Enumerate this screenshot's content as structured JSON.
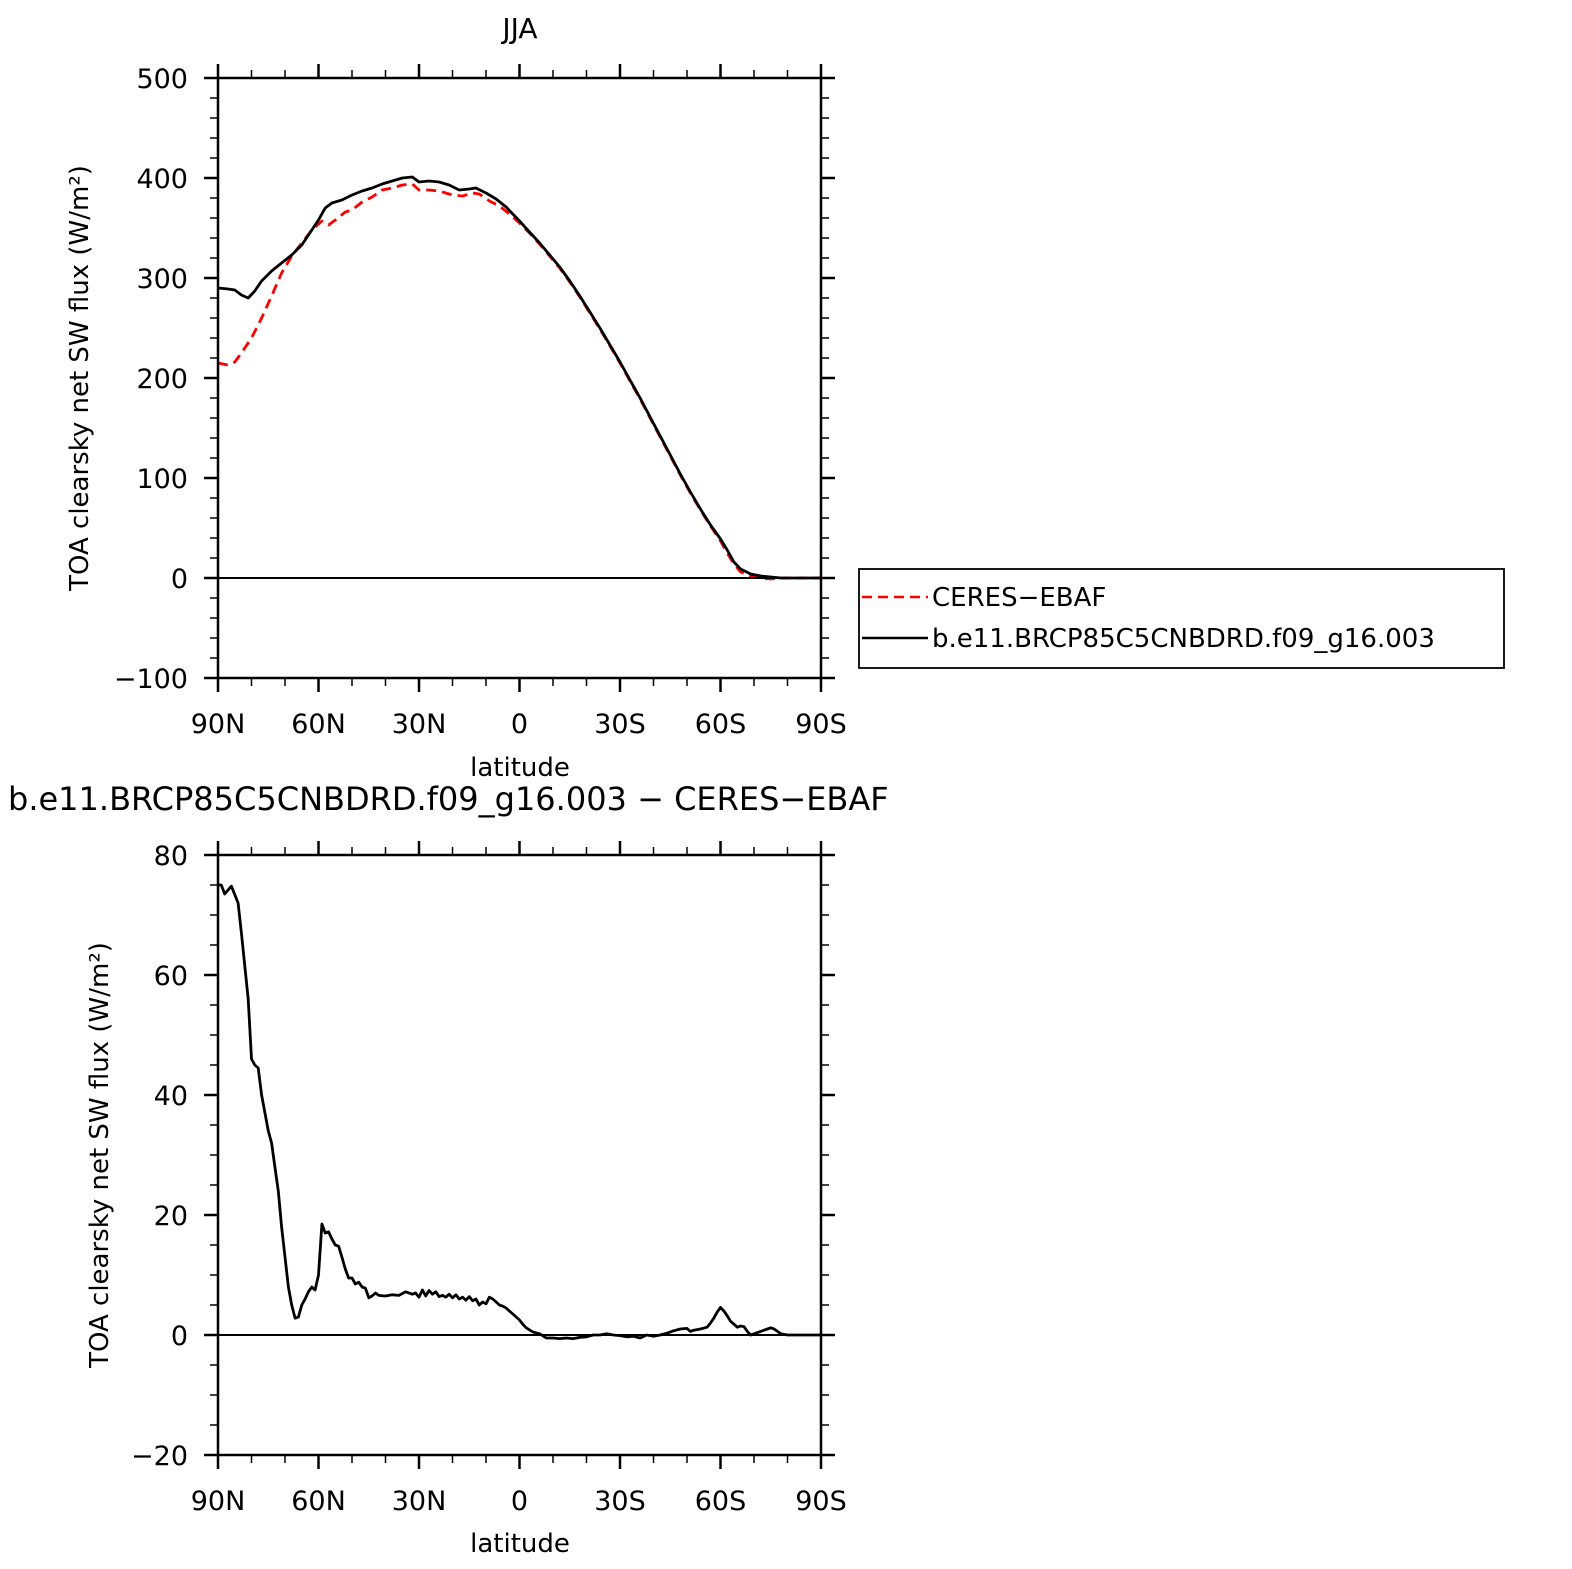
{
  "chart_data": [
    {
      "type": "line",
      "title": "JJA",
      "xlabel": "latitude",
      "ylabel": "TOA clearsky net SW flux (W/m²)",
      "xlim": [
        90,
        -90
      ],
      "ylim": [
        -100,
        500
      ],
      "yticks": [
        -100,
        0,
        100,
        200,
        300,
        400,
        500
      ],
      "xticks": [
        {
          "value": 90,
          "label": "90N"
        },
        {
          "value": 60,
          "label": "60N"
        },
        {
          "value": 30,
          "label": "30N"
        },
        {
          "value": 0,
          "label": "0"
        },
        {
          "value": -30,
          "label": "30S"
        },
        {
          "value": -60,
          "label": "60S"
        },
        {
          "value": -90,
          "label": "90S"
        }
      ],
      "legend_position": "right",
      "series": [
        {
          "name": "CERES−EBAF",
          "color": "#ff0000",
          "style": "dashed",
          "points": [
            [
              90,
              215
            ],
            [
              87,
              213
            ],
            [
              85,
              216
            ],
            [
              83,
              225
            ],
            [
              80,
              240
            ],
            [
              77,
              260
            ],
            [
              74,
              282
            ],
            [
              71,
              305
            ],
            [
              68,
              322
            ],
            [
              65,
              335
            ],
            [
              62,
              348
            ],
            [
              59,
              357
            ],
            [
              57,
              353
            ],
            [
              55,
              358
            ],
            [
              52,
              366
            ],
            [
              50,
              368
            ],
            [
              47,
              376
            ],
            [
              44,
              381
            ],
            [
              41,
              388
            ],
            [
              38,
              390
            ],
            [
              35,
              393
            ],
            [
              32,
              394
            ],
            [
              30,
              388
            ],
            [
              27,
              388
            ],
            [
              24,
              387
            ],
            [
              20,
              383
            ],
            [
              17,
              382
            ],
            [
              14,
              385
            ],
            [
              12,
              384
            ],
            [
              9,
              377
            ],
            [
              6,
              372
            ],
            [
              3,
              364
            ],
            [
              0,
              355
            ],
            [
              -3,
              345
            ],
            [
              -6,
              334
            ],
            [
              -9,
              322
            ],
            [
              -12,
              310
            ],
            [
              -15,
              296
            ],
            [
              -18,
              281
            ],
            [
              -21,
              265
            ],
            [
              -24,
              249
            ],
            [
              -27,
              232
            ],
            [
              -30,
              215
            ],
            [
              -33,
              197
            ],
            [
              -36,
              179
            ],
            [
              -39,
              160
            ],
            [
              -42,
              141
            ],
            [
              -45,
              122
            ],
            [
              -48,
              103
            ],
            [
              -51,
              85
            ],
            [
              -54,
              68
            ],
            [
              -57,
              52
            ],
            [
              -60,
              37
            ],
            [
              -62,
              25
            ],
            [
              -64,
              14
            ],
            [
              -66,
              6
            ],
            [
              -69,
              2
            ],
            [
              -72,
              0
            ],
            [
              -75,
              -1
            ],
            [
              -78,
              0
            ],
            [
              -81,
              0
            ],
            [
              -84,
              0
            ],
            [
              -87,
              0
            ],
            [
              -90,
              0
            ]
          ]
        },
        {
          "name": "b.e11.BRCP85C5CNBDRD.f09_g16.003",
          "color": "#000000",
          "style": "solid",
          "points": [
            [
              90,
              290
            ],
            [
              87,
              289
            ],
            [
              85,
              288
            ],
            [
              83,
              283
            ],
            [
              81,
              280
            ],
            [
              79,
              287
            ],
            [
              77,
              297
            ],
            [
              74,
              307
            ],
            [
              71,
              315
            ],
            [
              68,
              323
            ],
            [
              65,
              333
            ],
            [
              62,
              348
            ],
            [
              60,
              358
            ],
            [
              58,
              370
            ],
            [
              56,
              375
            ],
            [
              53,
              378
            ],
            [
              50,
              383
            ],
            [
              47,
              387
            ],
            [
              44,
              390
            ],
            [
              41,
              394
            ],
            [
              38,
              397
            ],
            [
              35,
              400
            ],
            [
              32,
              401
            ],
            [
              30,
              396
            ],
            [
              27,
              397
            ],
            [
              24,
              396
            ],
            [
              21,
              393
            ],
            [
              18,
              388
            ],
            [
              15,
              389
            ],
            [
              13,
              390
            ],
            [
              10,
              385
            ],
            [
              7,
              379
            ],
            [
              4,
              371
            ],
            [
              2,
              364
            ],
            [
              0,
              357
            ],
            [
              -3,
              346
            ],
            [
              -6,
              335
            ],
            [
              -9,
              323
            ],
            [
              -12,
              311
            ],
            [
              -15,
              297
            ],
            [
              -18,
              282
            ],
            [
              -21,
              266
            ],
            [
              -24,
              250
            ],
            [
              -27,
              233
            ],
            [
              -30,
              216
            ],
            [
              -33,
              198
            ],
            [
              -36,
              180
            ],
            [
              -39,
              161
            ],
            [
              -42,
              142
            ],
            [
              -45,
              123
            ],
            [
              -48,
              104
            ],
            [
              -51,
              86
            ],
            [
              -54,
              69
            ],
            [
              -57,
              53
            ],
            [
              -60,
              39
            ],
            [
              -62,
              28
            ],
            [
              -64,
              16
            ],
            [
              -66,
              9
            ],
            [
              -69,
              4
            ],
            [
              -72,
              2
            ],
            [
              -75,
              1
            ],
            [
              -78,
              0
            ],
            [
              -81,
              0
            ],
            [
              -84,
              0
            ],
            [
              -87,
              0
            ],
            [
              -90,
              0
            ]
          ]
        }
      ]
    },
    {
      "type": "line",
      "title": "b.e11.BRCP85C5CNBDRD.f09_g16.003 − CERES−EBAF",
      "xlabel": "latitude",
      "ylabel": "TOA clearsky net SW flux (W/m²)",
      "xlim": [
        90,
        -90
      ],
      "ylim": [
        -20,
        80
      ],
      "yticks": [
        -20,
        0,
        20,
        40,
        60,
        80
      ],
      "xticks": [
        {
          "value": 90,
          "label": "90N"
        },
        {
          "value": 60,
          "label": "60N"
        },
        {
          "value": 30,
          "label": "30N"
        },
        {
          "value": 0,
          "label": "0"
        },
        {
          "value": -30,
          "label": "30S"
        },
        {
          "value": -60,
          "label": "60S"
        },
        {
          "value": -90,
          "label": "90S"
        }
      ],
      "series": [
        {
          "color": "#000000",
          "style": "solid",
          "points": [
            [
              90,
              75
            ],
            [
              89,
              75
            ],
            [
              88,
              73.5
            ],
            [
              86,
              74.8
            ],
            [
              84,
              72
            ],
            [
              83,
              67
            ],
            [
              81,
              56
            ],
            [
              80,
              46
            ],
            [
              79,
              45
            ],
            [
              78,
              44.5
            ],
            [
              77,
              40
            ],
            [
              75,
              34
            ],
            [
              74,
              32
            ],
            [
              73,
              28
            ],
            [
              72,
              24
            ],
            [
              71,
              18
            ],
            [
              70,
              13
            ],
            [
              69,
              8
            ],
            [
              68,
              5
            ],
            [
              67,
              2.8
            ],
            [
              66,
              3
            ],
            [
              65,
              5
            ],
            [
              64,
              6
            ],
            [
              63,
              7.2
            ],
            [
              62,
              8
            ],
            [
              61,
              7.5
            ],
            [
              60,
              10
            ],
            [
              59,
              18.5
            ],
            [
              58,
              17
            ],
            [
              57,
              17.2
            ],
            [
              56,
              16
            ],
            [
              55,
              15
            ],
            [
              54,
              14.8
            ],
            [
              53,
              13
            ],
            [
              52,
              11
            ],
            [
              51,
              9.5
            ],
            [
              50,
              9.5
            ],
            [
              49,
              8.5
            ],
            [
              48,
              8.8
            ],
            [
              47,
              8
            ],
            [
              46,
              7.8
            ],
            [
              45,
              6.2
            ],
            [
              44,
              6.5
            ],
            [
              43,
              7
            ],
            [
              42,
              6.6
            ],
            [
              40,
              6.5
            ],
            [
              38,
              6.7
            ],
            [
              36,
              6.6
            ],
            [
              34,
              7.2
            ],
            [
              32,
              6.8
            ],
            [
              31,
              7
            ],
            [
              30,
              6.3
            ],
            [
              29,
              7.5
            ],
            [
              28,
              6.5
            ],
            [
              27,
              7.4
            ],
            [
              26,
              6.8
            ],
            [
              25,
              7.2
            ],
            [
              24,
              6.4
            ],
            [
              23,
              6.6
            ],
            [
              22,
              6.3
            ],
            [
              21,
              6.8
            ],
            [
              20,
              6.2
            ],
            [
              19,
              6.7
            ],
            [
              18,
              6
            ],
            [
              17,
              6.3
            ],
            [
              16,
              5.8
            ],
            [
              15,
              6.4
            ],
            [
              14,
              5.7
            ],
            [
              13,
              6
            ],
            [
              12,
              5
            ],
            [
              11,
              5.5
            ],
            [
              10,
              5.2
            ],
            [
              9,
              6.3
            ],
            [
              8,
              6
            ],
            [
              7,
              5.5
            ],
            [
              6,
              5
            ],
            [
              5,
              4.8
            ],
            [
              4,
              4.5
            ],
            [
              3,
              4
            ],
            [
              2,
              3.5
            ],
            [
              1,
              3
            ],
            [
              0,
              2.5
            ],
            [
              -1,
              1.8
            ],
            [
              -2,
              1.2
            ],
            [
              -4,
              0.5
            ],
            [
              -6,
              0.2
            ],
            [
              -8,
              -0.5
            ],
            [
              -10,
              -0.5
            ],
            [
              -12,
              -0.6
            ],
            [
              -14,
              -0.5
            ],
            [
              -16,
              -0.6
            ],
            [
              -18,
              -0.4
            ],
            [
              -20,
              -0.3
            ],
            [
              -22,
              0
            ],
            [
              -24,
              0
            ],
            [
              -26,
              0.2
            ],
            [
              -28,
              0
            ],
            [
              -30,
              -0.1
            ],
            [
              -32,
              -0.3
            ],
            [
              -34,
              -0.2
            ],
            [
              -36,
              -0.5
            ],
            [
              -38,
              0
            ],
            [
              -40,
              -0.2
            ],
            [
              -42,
              0
            ],
            [
              -44,
              0.3
            ],
            [
              -46,
              0.7
            ],
            [
              -48,
              1
            ],
            [
              -50,
              1.1
            ],
            [
              -51,
              0.6
            ],
            [
              -52,
              0.8
            ],
            [
              -54,
              1
            ],
            [
              -56,
              1.3
            ],
            [
              -57,
              2
            ],
            [
              -58,
              2.8
            ],
            [
              -59,
              3.8
            ],
            [
              -60,
              4.6
            ],
            [
              -61,
              4
            ],
            [
              -62,
              3.2
            ],
            [
              -63,
              2.3
            ],
            [
              -64,
              1.8
            ],
            [
              -65,
              1.3
            ],
            [
              -66,
              1.5
            ],
            [
              -67,
              1.4
            ],
            [
              -68,
              0.6
            ],
            [
              -69,
              0
            ],
            [
              -70,
              0.2
            ],
            [
              -71,
              0.4
            ],
            [
              -72,
              0.6
            ],
            [
              -73,
              0.8
            ],
            [
              -74,
              1
            ],
            [
              -75,
              1.2
            ],
            [
              -76,
              1
            ],
            [
              -77,
              0.6
            ],
            [
              -78,
              0.2
            ],
            [
              -80,
              0
            ],
            [
              -84,
              0
            ],
            [
              -90,
              0
            ]
          ]
        }
      ]
    }
  ]
}
